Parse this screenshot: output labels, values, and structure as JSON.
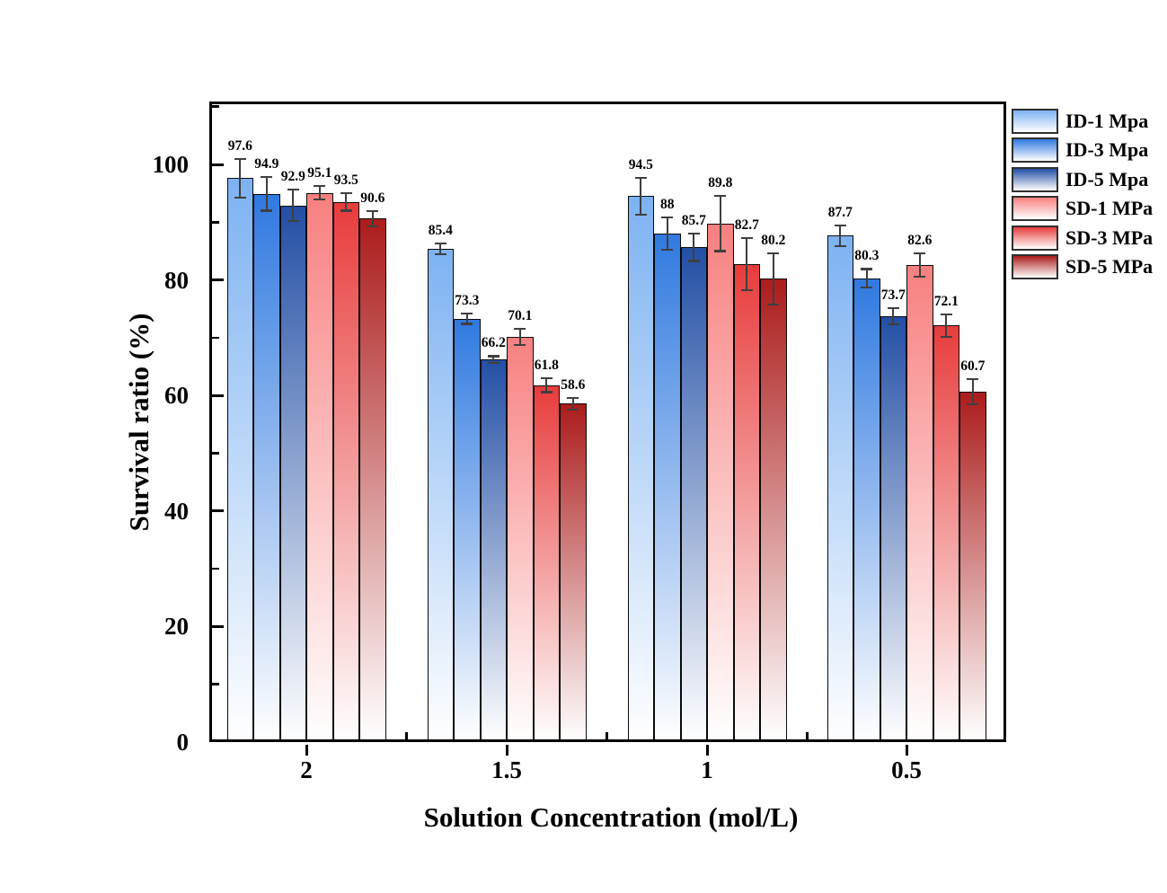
{
  "chart_data": {
    "type": "bar",
    "title": "",
    "xlabel": "Solution Concentration (mol/L)",
    "ylabel": "Survival ratio (%)",
    "categories": [
      "2",
      "1.5",
      "1",
      "0.5"
    ],
    "yticks": [
      0,
      20,
      40,
      60,
      80,
      100
    ],
    "yminorticks": [
      10,
      30,
      50,
      70,
      90,
      110
    ],
    "ylim": [
      0,
      110.9
    ],
    "grid": false,
    "bar_value_labels": true,
    "error_bars": true,
    "legend_position": "top-right-outside",
    "bar_gradient": "color-top-to-white-bottom",
    "series": [
      {
        "name": "ID-1 Mpa",
        "color": "#7DB2F2",
        "values": [
          97.6,
          85.4,
          94.5,
          87.7
        ],
        "errors": [
          3.3,
          0.9,
          3.2,
          1.8
        ]
      },
      {
        "name": "ID-3 Mpa",
        "color": "#3079E0",
        "values": [
          94.9,
          73.3,
          88,
          80.3
        ],
        "errors": [
          2.9,
          0.9,
          2.8,
          1.6
        ]
      },
      {
        "name": "ID-5 Mpa",
        "color": "#234FA5",
        "values": [
          92.9,
          66.2,
          85.7,
          73.7
        ],
        "errors": [
          2.7,
          0.6,
          2.4,
          1.4
        ]
      },
      {
        "name": "SD-1 MPa",
        "color": "#F88080",
        "values": [
          95.1,
          70.1,
          89.8,
          82.6
        ],
        "errors": [
          1.2,
          1.4,
          4.8,
          2.0
        ]
      },
      {
        "name": "SD-3 MPa",
        "color": "#E83C3C",
        "values": [
          93.5,
          61.8,
          82.7,
          72.1
        ],
        "errors": [
          1.5,
          1.2,
          4.5,
          1.9
        ]
      },
      {
        "name": "SD-5 MPa",
        "color": "#AC1C1C",
        "values": [
          90.6,
          58.6,
          80.2,
          60.7
        ],
        "errors": [
          1.3,
          1.0,
          4.4,
          2.2
        ]
      }
    ],
    "colors": {
      "bar_border": "#0a0a0a",
      "error_bar": "#3f3f3f",
      "axis": "#000000",
      "background": "#ffffff"
    }
  }
}
